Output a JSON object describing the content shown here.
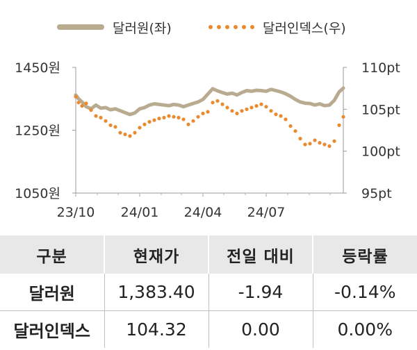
{
  "chart_data": {
    "type": "line",
    "legend": [
      {
        "name": "달러원(좌)",
        "style": "solid",
        "color": "#b9ab90"
      },
      {
        "name": "달러인덱스(우)",
        "style": "dotted",
        "color": "#ea8a2e"
      }
    ],
    "x_ticks": [
      "23/10",
      "24/01",
      "24/04",
      "24/07"
    ],
    "y_left": {
      "ticks": [
        "1450원",
        "1250원",
        "1050원"
      ],
      "range": [
        1050,
        1450
      ]
    },
    "y_right": {
      "ticks": [
        "110pt",
        "105pt",
        "100pt",
        "95pt"
      ],
      "range": [
        95,
        110
      ]
    },
    "x_range": [
      "2023-10-01",
      "2024-10-20"
    ],
    "grid": false,
    "series": [
      {
        "name": "달러원(좌)",
        "axis": "left",
        "x": [
          "2023-10-01",
          "2023-10-05",
          "2023-10-10",
          "2023-10-16",
          "2023-10-23",
          "2023-10-30",
          "2023-11-06",
          "2023-11-13",
          "2023-11-20",
          "2023-11-27",
          "2023-12-04",
          "2023-12-11",
          "2023-12-18",
          "2023-12-25",
          "2024-01-01",
          "2024-01-08",
          "2024-01-15",
          "2024-01-22",
          "2024-01-29",
          "2024-02-05",
          "2024-02-12",
          "2024-02-19",
          "2024-02-26",
          "2024-03-04",
          "2024-03-11",
          "2024-03-18",
          "2024-03-25",
          "2024-04-01",
          "2024-04-08",
          "2024-04-15",
          "2024-04-22",
          "2024-04-29",
          "2024-05-06",
          "2024-05-13",
          "2024-05-20",
          "2024-05-27",
          "2024-06-03",
          "2024-06-10",
          "2024-06-17",
          "2024-06-24",
          "2024-07-01",
          "2024-07-08",
          "2024-07-15",
          "2024-07-22",
          "2024-07-29",
          "2024-08-05",
          "2024-08-12",
          "2024-08-19",
          "2024-08-26",
          "2024-09-02",
          "2024-09-09",
          "2024-09-16",
          "2024-09-23",
          "2024-09-30",
          "2024-10-07",
          "2024-10-14",
          "2024-10-20"
        ],
        "y": [
          1362,
          1350,
          1340,
          1325,
          1318,
          1330,
          1320,
          1322,
          1315,
          1318,
          1312,
          1306,
          1300,
          1305,
          1318,
          1322,
          1330,
          1334,
          1332,
          1330,
          1328,
          1332,
          1330,
          1325,
          1330,
          1335,
          1340,
          1348,
          1365,
          1382,
          1375,
          1370,
          1365,
          1368,
          1362,
          1370,
          1376,
          1374,
          1377,
          1376,
          1374,
          1380,
          1376,
          1372,
          1366,
          1358,
          1348,
          1340,
          1336,
          1335,
          1330,
          1334,
          1328,
          1330,
          1345,
          1372,
          1384
        ]
      },
      {
        "name": "달러인덱스(우)",
        "axis": "right",
        "x": [
          "2023-10-01",
          "2023-10-05",
          "2023-10-10",
          "2023-10-16",
          "2023-10-23",
          "2023-10-30",
          "2023-11-06",
          "2023-11-13",
          "2023-11-20",
          "2023-11-27",
          "2023-12-04",
          "2023-12-11",
          "2023-12-18",
          "2023-12-25",
          "2024-01-01",
          "2024-01-08",
          "2024-01-15",
          "2024-01-22",
          "2024-01-29",
          "2024-02-05",
          "2024-02-12",
          "2024-02-19",
          "2024-02-26",
          "2024-03-04",
          "2024-03-11",
          "2024-03-18",
          "2024-03-25",
          "2024-04-01",
          "2024-04-08",
          "2024-04-15",
          "2024-04-22",
          "2024-04-29",
          "2024-05-06",
          "2024-05-13",
          "2024-05-20",
          "2024-05-27",
          "2024-06-03",
          "2024-06-10",
          "2024-06-17",
          "2024-06-24",
          "2024-07-01",
          "2024-07-08",
          "2024-07-15",
          "2024-07-22",
          "2024-07-29",
          "2024-08-05",
          "2024-08-12",
          "2024-08-19",
          "2024-08-26",
          "2024-09-02",
          "2024-09-09",
          "2024-09-16",
          "2024-09-23",
          "2024-09-30",
          "2024-10-07",
          "2024-10-14",
          "2024-10-20"
        ],
        "y": [
          106.5,
          105.8,
          105.4,
          105.7,
          104.9,
          104.2,
          104.0,
          103.6,
          103.1,
          102.9,
          102.2,
          102.0,
          101.8,
          102.2,
          102.8,
          103.2,
          103.5,
          103.7,
          103.9,
          104.0,
          104.2,
          104.1,
          104.0,
          103.8,
          103.2,
          103.6,
          104.1,
          104.5,
          104.7,
          105.8,
          106.0,
          105.6,
          105.2,
          104.8,
          104.5,
          104.8,
          105.0,
          105.2,
          105.4,
          105.6,
          105.3,
          104.8,
          104.4,
          104.2,
          103.8,
          103.0,
          102.4,
          101.5,
          100.8,
          100.9,
          101.3,
          101.0,
          100.8,
          100.6,
          101.2,
          103.1,
          104.1
        ]
      }
    ]
  },
  "table": {
    "headers": [
      "구분",
      "현재가",
      "전일 대비",
      "등락률"
    ],
    "rows": [
      [
        "달러원",
        "1,383.40",
        "-1.94",
        "-0.14%"
      ],
      [
        "달러인덱스",
        "104.32",
        "0.00",
        "0.00%"
      ]
    ]
  }
}
